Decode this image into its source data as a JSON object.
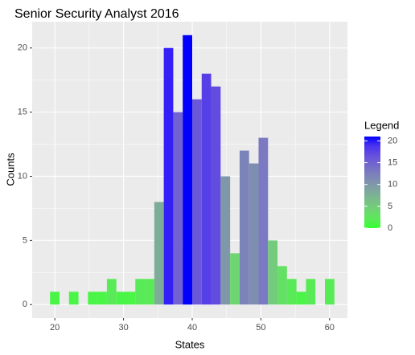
{
  "chart_data": {
    "type": "histogram",
    "title": "Senior Security Analyst 2016",
    "x_label": "States",
    "y_label": "Counts",
    "bins": [
      19.3,
      20.68,
      22.06,
      23.44,
      24.82,
      26.2,
      27.58,
      28.96,
      30.34,
      31.72,
      33.1,
      34.48,
      35.86,
      37.24,
      38.62,
      40,
      41.38,
      42.76,
      44.14,
      45.52,
      46.9,
      48.28,
      49.66,
      51.04,
      52.42,
      53.8,
      55.18,
      56.56,
      57.94,
      59.32,
      60.7
    ],
    "counts": [
      1,
      0,
      1,
      0,
      1,
      1,
      2,
      1,
      1,
      2,
      2,
      8,
      20,
      15,
      21,
      16,
      18,
      17,
      10,
      4,
      12,
      11,
      13,
      5,
      3,
      2,
      1,
      2,
      0,
      2
    ],
    "xlim": [
      16.7,
      62.6
    ],
    "xticks": [
      20,
      30,
      40,
      50,
      60
    ],
    "ylim": [
      -1.05,
      22.05
    ],
    "yticks": [
      0,
      5,
      10,
      15,
      20
    ],
    "grid": true,
    "legend": {
      "title": "Legend",
      "low_color": "#33FF33",
      "high_color": "#0000FF",
      "lim": [
        0,
        21
      ],
      "ticks": [
        0,
        5,
        10,
        15,
        20
      ]
    }
  }
}
